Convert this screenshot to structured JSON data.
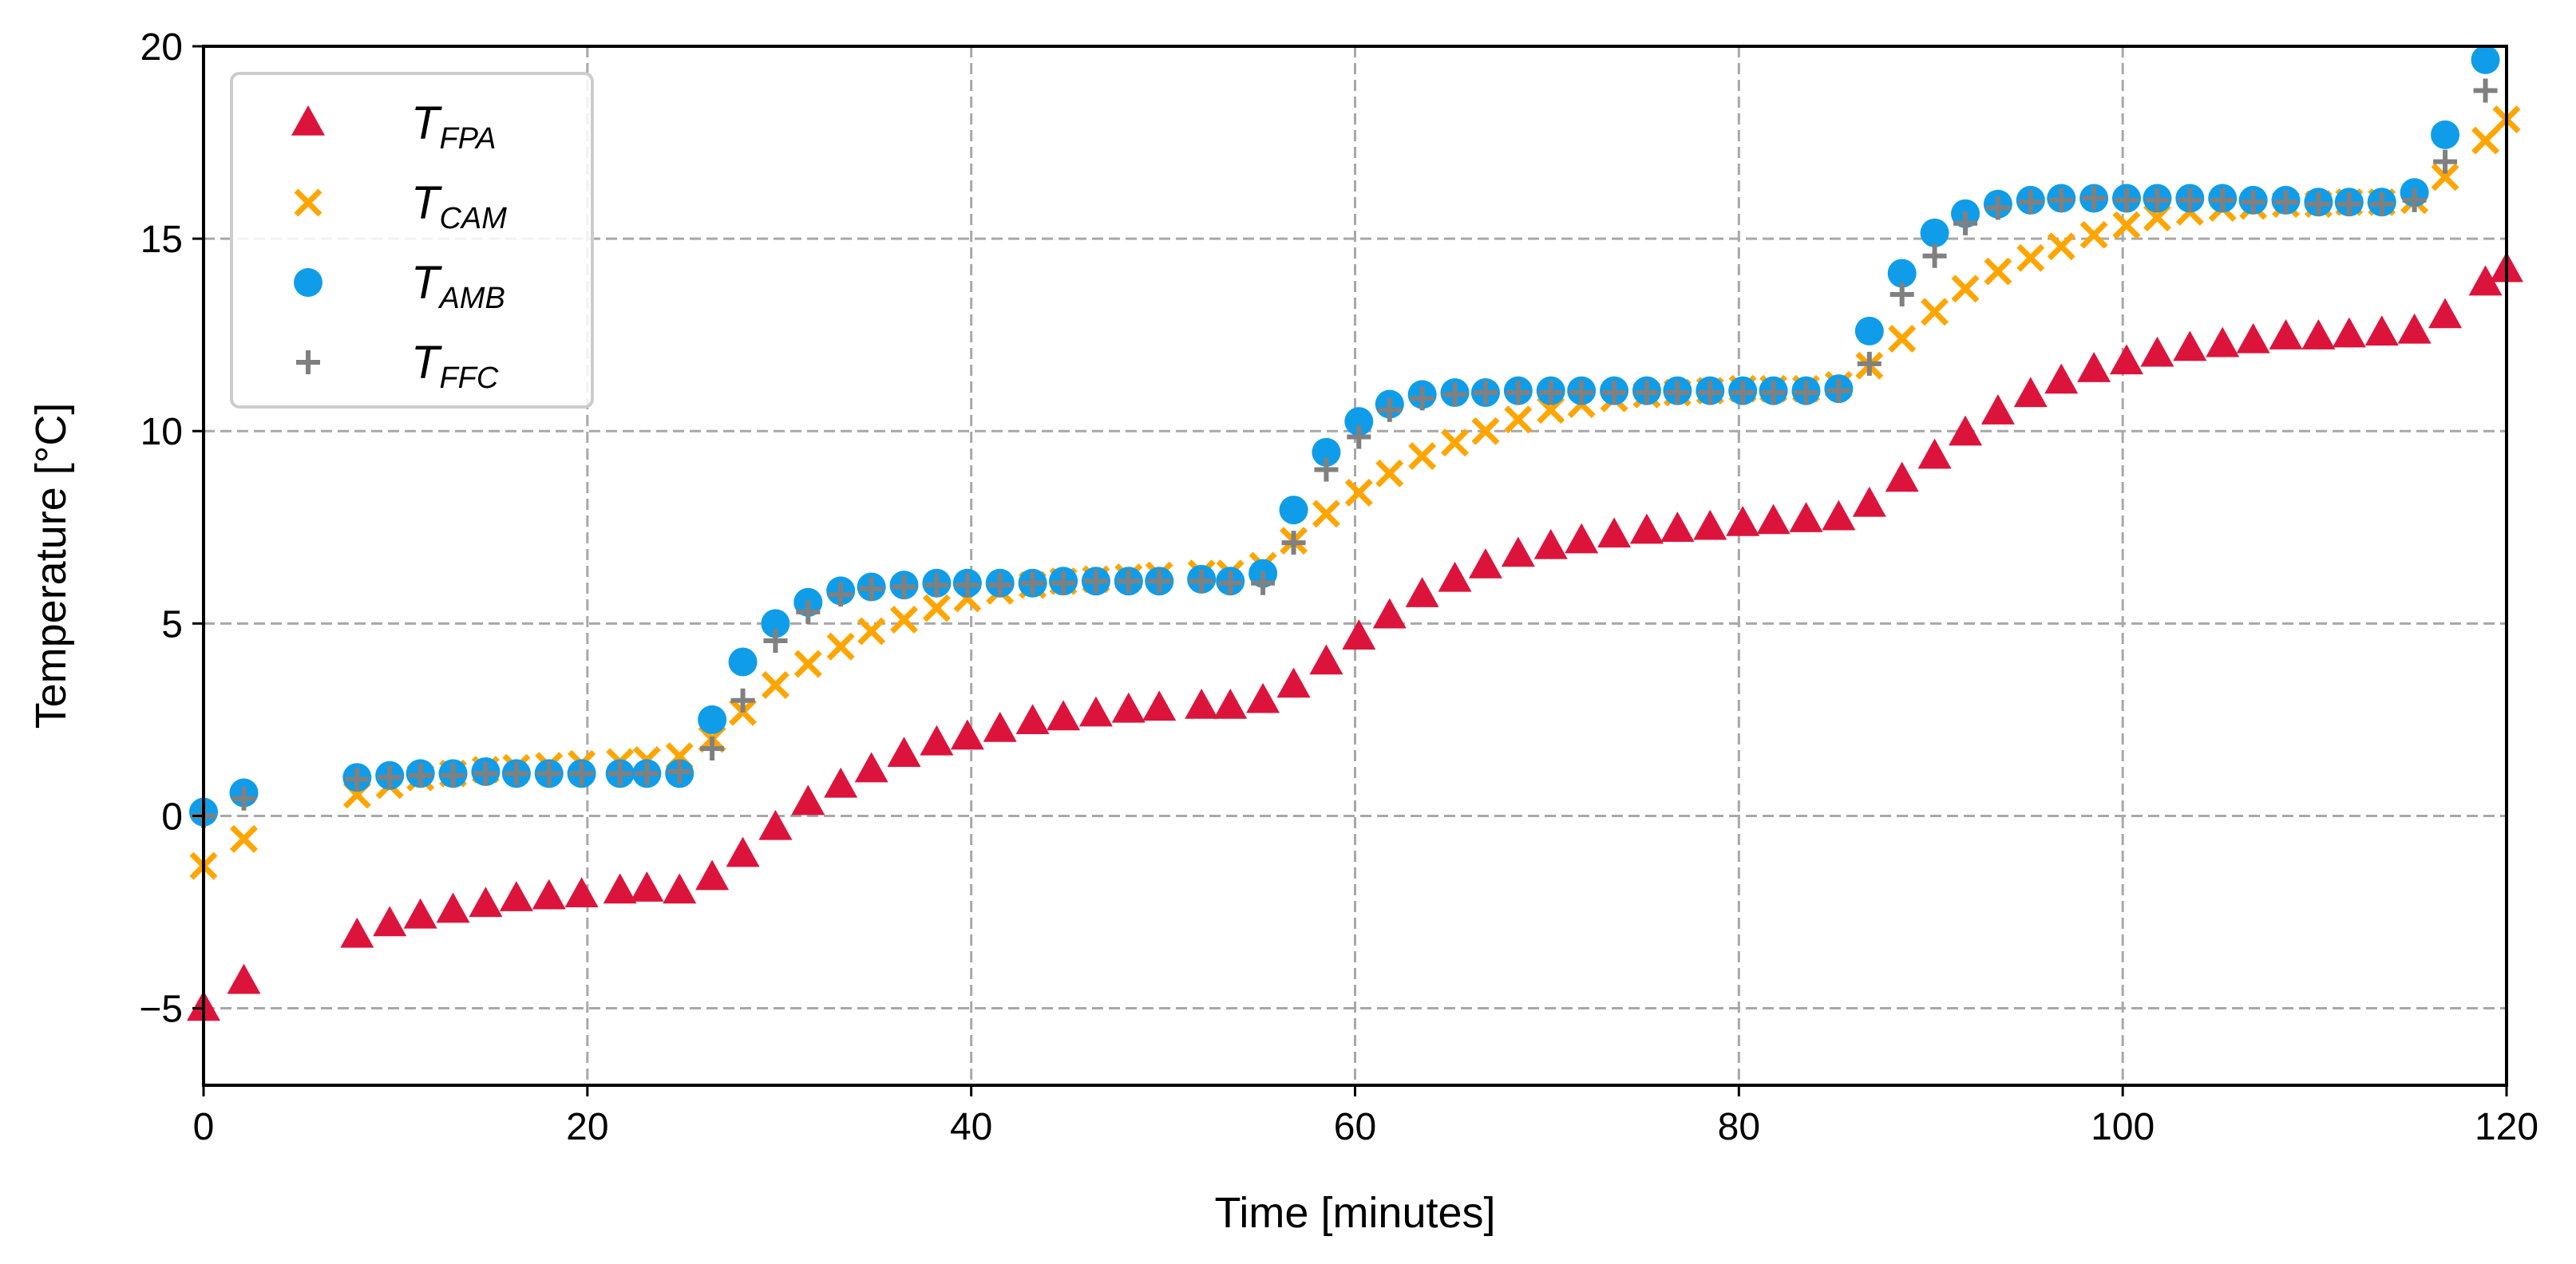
{
  "chart_data": {
    "type": "scatter",
    "xlabel": "Time [minutes]",
    "ylabel": "Temperature [°C]",
    "xlim": [
      0,
      120
    ],
    "ylim": [
      -7,
      20
    ],
    "xticks": [
      0,
      20,
      40,
      60,
      80,
      100,
      120
    ],
    "xtick_labels": [
      "0",
      "20",
      "40",
      "60",
      "80",
      "100",
      "120"
    ],
    "yticks": [
      -5,
      0,
      5,
      10,
      15,
      20
    ],
    "ytick_labels": [
      "−5",
      "0",
      "5",
      "10",
      "15",
      "20"
    ],
    "grid": true,
    "grid_style": "dashed",
    "legend_position": "top-left",
    "x": [
      0,
      2.1,
      8,
      9.7,
      11.3,
      13,
      14.7,
      16.3,
      18,
      19.7,
      21.7,
      23.1,
      24.8,
      26.5,
      28.1,
      29.8,
      31.5,
      33.2,
      34.8,
      36.5,
      38.2,
      39.8,
      41.5,
      43.2,
      44.8,
      46.5,
      48.2,
      49.8,
      52,
      53.5,
      55.2,
      56.8,
      58.5,
      60.2,
      61.8,
      63.5,
      65.2,
      66.8,
      68.5,
      70.2,
      71.8,
      73.5,
      75.2,
      76.8,
      78.5,
      80.2,
      81.8,
      83.5,
      85.2,
      86.8,
      88.5,
      90.2,
      91.8,
      93.5,
      95.2,
      96.8,
      98.5,
      100.2,
      101.8,
      103.5,
      105.2,
      106.8,
      108.5,
      110.2,
      111.8,
      113.5,
      115.2,
      116.8,
      118.9,
      120
    ],
    "series": [
      {
        "name": "FPA",
        "marker": "triangle",
        "color": "#dc143c",
        "values": [
          -5.0,
          -4.3,
          -3.1,
          -2.8,
          -2.6,
          -2.45,
          -2.3,
          -2.15,
          -2.1,
          -2.05,
          -1.95,
          -1.9,
          -1.95,
          -1.6,
          -1.0,
          -0.3,
          0.35,
          0.8,
          1.2,
          1.6,
          1.9,
          2.05,
          2.25,
          2.45,
          2.55,
          2.65,
          2.75,
          2.8,
          2.85,
          2.85,
          3.0,
          3.4,
          4.0,
          4.65,
          5.2,
          5.75,
          6.15,
          6.5,
          6.8,
          7.0,
          7.15,
          7.3,
          7.4,
          7.45,
          7.5,
          7.6,
          7.65,
          7.7,
          7.75,
          8.1,
          8.75,
          9.35,
          9.95,
          10.5,
          10.95,
          11.3,
          11.6,
          11.8,
          12.0,
          12.15,
          12.25,
          12.35,
          12.45,
          12.45,
          12.5,
          12.55,
          12.6,
          13.0,
          13.85,
          14.2
        ]
      },
      {
        "name": "CAM",
        "marker": "x",
        "color": "#ffa500",
        "values": [
          -1.3,
          -0.6,
          0.55,
          0.8,
          1.0,
          1.1,
          1.2,
          1.25,
          1.3,
          1.35,
          1.4,
          1.45,
          1.55,
          2.0,
          2.7,
          3.4,
          3.95,
          4.4,
          4.8,
          5.1,
          5.4,
          5.65,
          5.85,
          6.0,
          6.1,
          6.15,
          6.2,
          6.25,
          6.3,
          6.3,
          6.5,
          7.15,
          7.85,
          8.4,
          8.9,
          9.35,
          9.7,
          10.0,
          10.3,
          10.55,
          10.7,
          10.85,
          10.95,
          11.0,
          11.05,
          11.1,
          11.1,
          11.1,
          11.2,
          11.7,
          12.4,
          13.1,
          13.7,
          14.15,
          14.5,
          14.8,
          15.1,
          15.35,
          15.55,
          15.7,
          15.8,
          15.85,
          15.9,
          15.9,
          15.95,
          15.95,
          16.0,
          16.6,
          17.55,
          18.1
        ]
      },
      {
        "name": "AMB",
        "marker": "circle",
        "color": "#0f9dea",
        "values": [
          0.1,
          0.6,
          1.0,
          1.05,
          1.1,
          1.1,
          1.15,
          1.1,
          1.1,
          1.1,
          1.1,
          1.1,
          1.1,
          2.5,
          4.0,
          5.0,
          5.55,
          5.85,
          5.95,
          6.0,
          6.05,
          6.05,
          6.05,
          6.05,
          6.1,
          6.1,
          6.1,
          6.1,
          6.15,
          6.1,
          6.3,
          7.95,
          9.45,
          10.25,
          10.7,
          10.95,
          11.0,
          11.0,
          11.05,
          11.05,
          11.05,
          11.05,
          11.05,
          11.05,
          11.05,
          11.05,
          11.05,
          11.05,
          11.1,
          12.6,
          14.1,
          15.15,
          15.65,
          15.9,
          16.0,
          16.05,
          16.05,
          16.05,
          16.05,
          16.05,
          16.05,
          16.0,
          16.0,
          15.95,
          15.95,
          15.95,
          16.2,
          17.7,
          19.65,
          null
        ]
      },
      {
        "name": "FFC",
        "marker": "plus",
        "color": "#808080",
        "values": [
          0.0,
          0.45,
          0.95,
          1.0,
          1.05,
          1.05,
          1.1,
          1.1,
          1.1,
          1.1,
          1.1,
          1.1,
          1.15,
          1.75,
          3.0,
          4.55,
          5.3,
          5.75,
          5.9,
          5.95,
          6.0,
          6.0,
          6.0,
          6.05,
          6.05,
          6.1,
          6.1,
          6.1,
          6.1,
          6.05,
          6.05,
          7.1,
          9.0,
          9.85,
          10.55,
          10.85,
          10.95,
          11.0,
          11.0,
          11.0,
          11.0,
          11.0,
          11.0,
          11.0,
          11.0,
          11.0,
          11.0,
          11.0,
          11.05,
          11.75,
          13.55,
          14.55,
          15.4,
          15.8,
          15.95,
          16.0,
          16.05,
          16.0,
          16.0,
          16.0,
          16.0,
          15.95,
          15.95,
          15.9,
          15.9,
          15.9,
          16.0,
          17.0,
          18.85,
          null
        ]
      }
    ],
    "legend": [
      {
        "symbol": "T",
        "sub": "FPA"
      },
      {
        "symbol": "T",
        "sub": "CAM"
      },
      {
        "symbol": "T",
        "sub": "AMB"
      },
      {
        "symbol": "T",
        "sub": "FFC"
      }
    ]
  }
}
